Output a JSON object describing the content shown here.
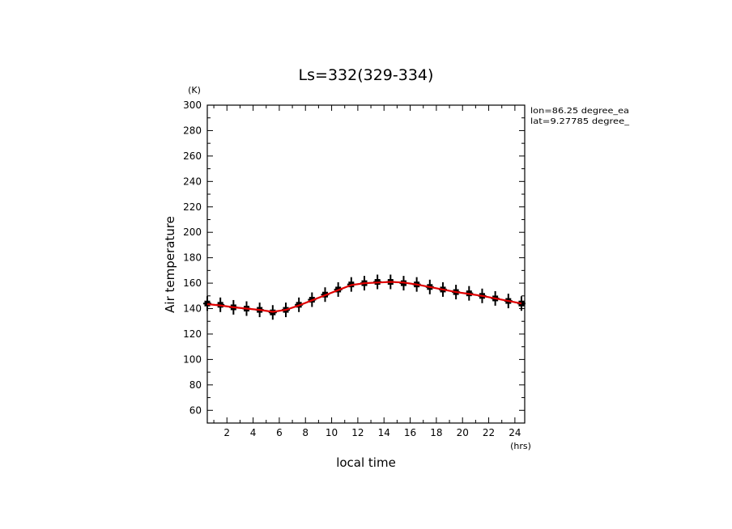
{
  "chart_data": {
    "type": "line",
    "title": "Ls=332(329-334)",
    "xlabel": "local time",
    "ylabel": "Air temperature",
    "x_unit": "(hrs)",
    "y_unit": "(K)",
    "xlim": [
      0.5,
      24.75
    ],
    "ylim": [
      50,
      300
    ],
    "x_ticks": [
      "2",
      "4",
      "6",
      "8",
      "10",
      "12",
      "14",
      "16",
      "18",
      "20",
      "22",
      "24"
    ],
    "y_ticks": [
      "60",
      "80",
      "100",
      "120",
      "140",
      "160",
      "180",
      "200",
      "220",
      "240",
      "260",
      "280",
      "300"
    ],
    "annotations": [
      "lon=86.25 degree_ea",
      "lat=9.27785 degree_"
    ],
    "grid": false,
    "series": [
      {
        "marker": "cross-with-errorbar",
        "color": "#000000",
        "x": [
          0.5,
          1.5,
          2.5,
          3.5,
          4.5,
          5.5,
          6.5,
          7.5,
          8.5,
          9.5,
          10.5,
          11.5,
          12.5,
          13.5,
          14.5,
          15.5,
          16.5,
          17.5,
          18.5,
          19.5,
          20.5,
          21.5,
          22.5,
          23.5,
          24.5
        ],
        "values": [
          144,
          143,
          141,
          140,
          139,
          137,
          139,
          143,
          147,
          151,
          155,
          159,
          160,
          161,
          161,
          160,
          159,
          157,
          155,
          153,
          152,
          150,
          148,
          146,
          144
        ]
      },
      {
        "marker": "line",
        "color": "#e00000",
        "x": [
          0.5,
          1.5,
          2.5,
          3.5,
          4.5,
          5.5,
          6.5,
          7.5,
          8.5,
          9.5,
          10.5,
          11.5,
          12.5,
          13.5,
          14.5,
          15.5,
          16.5,
          17.5,
          18.5,
          19.5,
          20.5,
          21.5,
          22.5,
          23.5,
          24.5
        ],
        "values": [
          143.5,
          142.5,
          141,
          140,
          139,
          137.5,
          139,
          142.5,
          146.5,
          150.5,
          154.5,
          158.5,
          160,
          160.5,
          161,
          160.5,
          159,
          157,
          155,
          153,
          151.5,
          150,
          148,
          146,
          144
        ]
      }
    ]
  }
}
